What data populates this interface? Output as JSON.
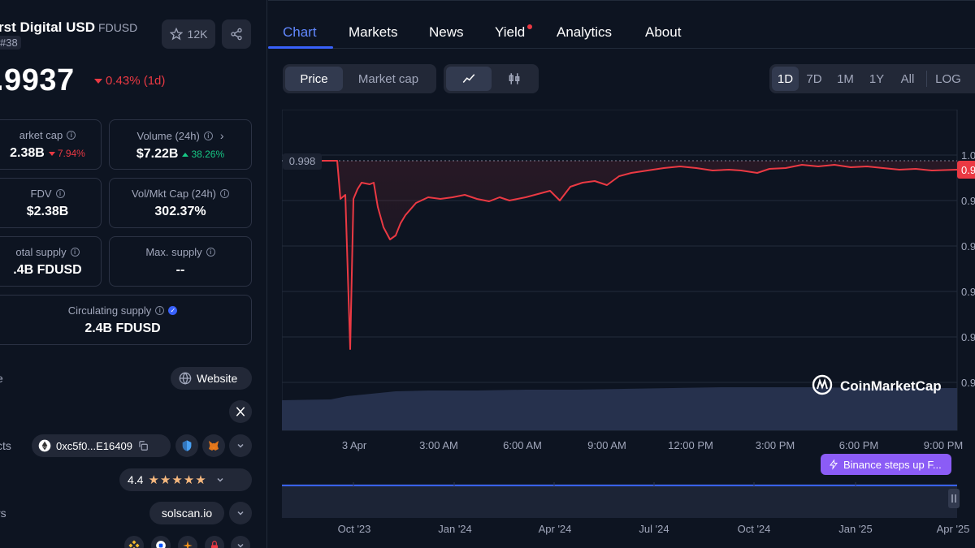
{
  "coin": {
    "name": "rst Digital USD",
    "symbol": "FDUSD",
    "rank": "#38",
    "watchlist_count": "12K",
    "price": ".9937",
    "change": "0.43% (1d)"
  },
  "stats": {
    "market_cap": {
      "label": "arket cap",
      "value": "2.38B",
      "change": "7.94%"
    },
    "volume": {
      "label": "Volume (24h)",
      "value": "$7.22B",
      "change": "38.26%"
    },
    "fdv": {
      "label": "FDV",
      "value": "$2.38B"
    },
    "vol_mkt": {
      "label": "Vol/Mkt Cap (24h)",
      "value": "302.37%"
    },
    "total_supply": {
      "label": "otal supply",
      "value": ".4B FDUSD"
    },
    "max_supply": {
      "label": "Max. supply",
      "value": "--"
    },
    "circulating": {
      "label": "Circulating supply",
      "value": "2.4B FDUSD"
    }
  },
  "links": {
    "website_row_label": "e",
    "website_label": "Website",
    "contracts_row_label": "cts",
    "contract_address": "0xc5f0...E16409",
    "rating": "4.4",
    "explorers_row_label": "rs",
    "explorer": "solscan.io"
  },
  "tabs": [
    "Chart",
    "Markets",
    "News",
    "Yield",
    "Analytics",
    "About"
  ],
  "controls": {
    "price": "Price",
    "market_cap": "Market cap",
    "ranges": [
      "1D",
      "7D",
      "1M",
      "1Y",
      "All",
      "LOG"
    ]
  },
  "colors": {
    "accent": "#3861fb",
    "down": "#ea3943",
    "up": "#16c784",
    "line": "#ea3943"
  },
  "chart_data": {
    "type": "line",
    "reference_label": "0.998",
    "current_label": "0.9",
    "y_tick_labels": [
      "1.0",
      "0.9",
      "0.9",
      "0.9",
      "0.9",
      "0.9"
    ],
    "x_tick_labels": [
      "3 Apr",
      "3:00 AM",
      "6:00 AM",
      "9:00 AM",
      "12:00 PM",
      "3:00 PM",
      "6:00 PM",
      "9:00 PM"
    ],
    "navigator_tick_labels": [
      "Oct '23",
      "Jan '24",
      "Apr '24",
      "Jul '24",
      "Oct '24",
      "Jan '25",
      "Apr '25"
    ],
    "watermark": "CoinMarketCap",
    "news_badge": "Binance steps up F..."
  }
}
